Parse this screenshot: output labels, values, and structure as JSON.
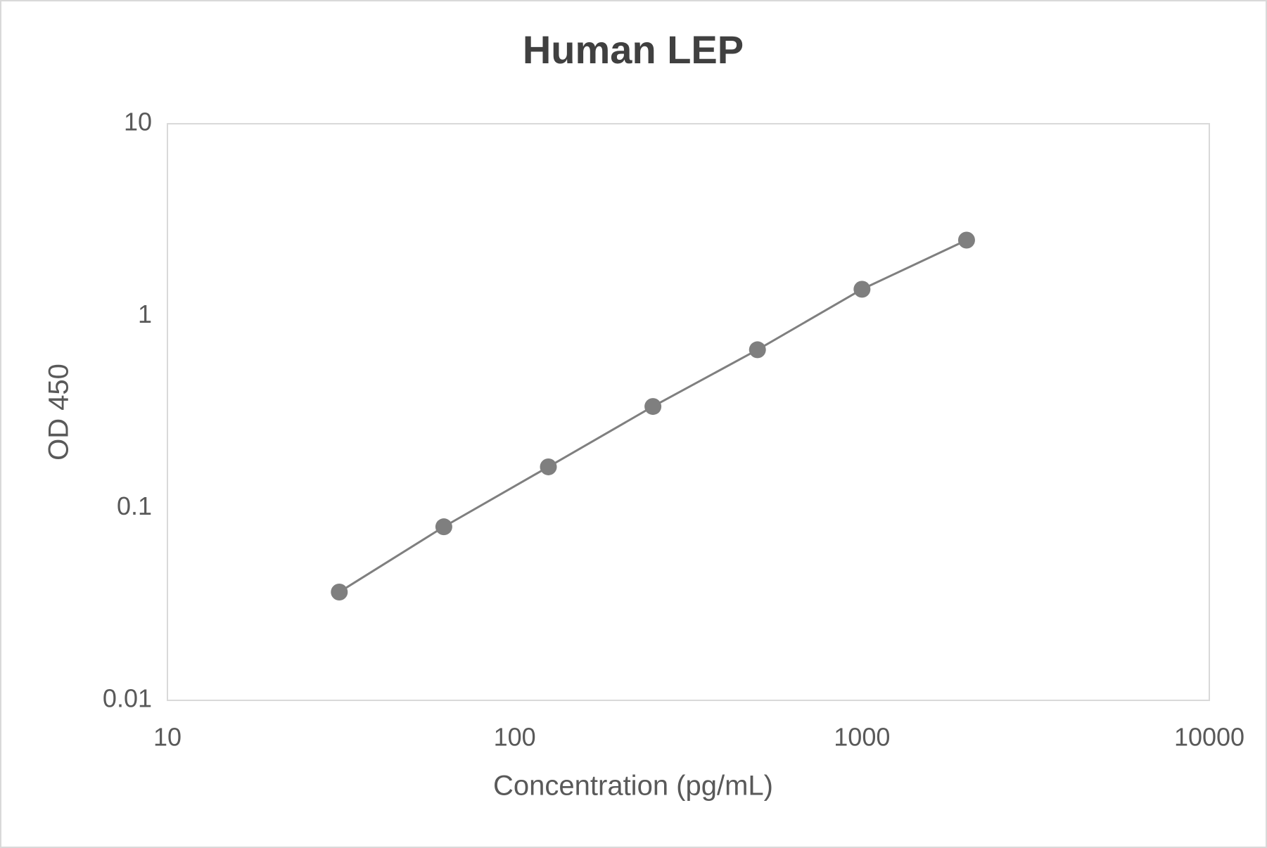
{
  "chart_data": {
    "type": "scatter",
    "title": "Human LEP",
    "x_label": "Concentration (pg/mL)",
    "y_label": "OD 450",
    "x": [
      31.25,
      62.5,
      125,
      250,
      500,
      1000,
      2000
    ],
    "values": [
      0.0366,
      0.08,
      0.164,
      0.338,
      0.667,
      1.377,
      2.48
    ],
    "color": "#7f7f7f",
    "line": true,
    "xscale": "log",
    "yscale": "log",
    "xlim": [
      10,
      10000
    ],
    "ylim": [
      0.01,
      10
    ],
    "xticks": [
      10,
      100,
      1000,
      10000
    ],
    "yticks": [
      0.01,
      0.1,
      1,
      10
    ],
    "grid": false
  }
}
